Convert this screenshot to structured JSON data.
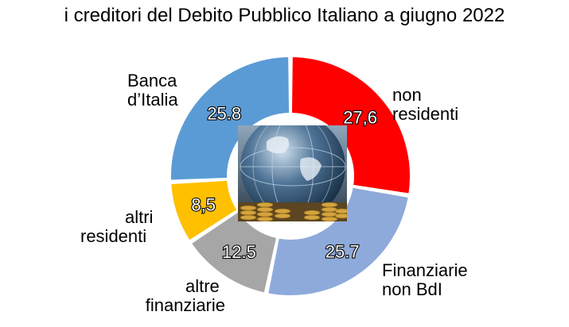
{
  "chart_data": {
    "type": "pie",
    "title": "i creditori del Debito Pubblico Italiano a giugno 2022",
    "categories": [
      "non residenti",
      "Finanziarie non BdI",
      "altre finanziarie",
      "altri residenti",
      "Banca d'Italia"
    ],
    "values": [
      27.6,
      25.7,
      12.5,
      8.5,
      25.8
    ],
    "value_labels": [
      "27,6",
      "25.7",
      "12.5",
      "8,5",
      "25.8"
    ],
    "label_lines": [
      [
        "non",
        "residenti"
      ],
      [
        "Finanziarie",
        "non BdI"
      ],
      [
        "altre",
        "finanziarie"
      ],
      [
        "altri",
        "residenti"
      ],
      [
        "Banca",
        "d’Italia"
      ]
    ],
    "colors": [
      "#ff0000",
      "#8eaadb",
      "#a6a6a6",
      "#ffc000",
      "#5b9bd5"
    ],
    "donut": true,
    "center_image": "globe-with-coins"
  }
}
